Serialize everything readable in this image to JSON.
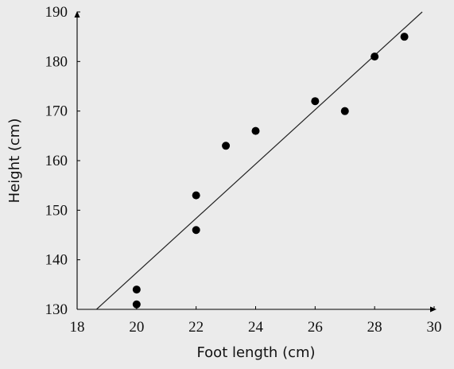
{
  "chart_data": {
    "type": "scatter",
    "title": "",
    "xlabel": "Foot length (cm)",
    "ylabel": "Height (cm)",
    "xlim": [
      18,
      30
    ],
    "ylim": [
      130,
      190
    ],
    "x_ticks": [
      18,
      20,
      22,
      24,
      26,
      28,
      30
    ],
    "y_ticks": [
      130,
      140,
      150,
      160,
      170,
      180,
      190
    ],
    "grid": false,
    "points": [
      {
        "x": 20,
        "y": 134
      },
      {
        "x": 20,
        "y": 131
      },
      {
        "x": 22,
        "y": 153
      },
      {
        "x": 22,
        "y": 146
      },
      {
        "x": 23,
        "y": 163
      },
      {
        "x": 24,
        "y": 166
      },
      {
        "x": 26,
        "y": 172
      },
      {
        "x": 27,
        "y": 170
      },
      {
        "x": 28,
        "y": 181
      },
      {
        "x": 29,
        "y": 185
      }
    ],
    "trend_line": {
      "x": [
        18.65,
        29.6
      ],
      "y": [
        130,
        190
      ]
    },
    "colors": {
      "background": "#ebebeb",
      "point": "#000000",
      "line": "#222222",
      "axis": "#000000"
    }
  }
}
